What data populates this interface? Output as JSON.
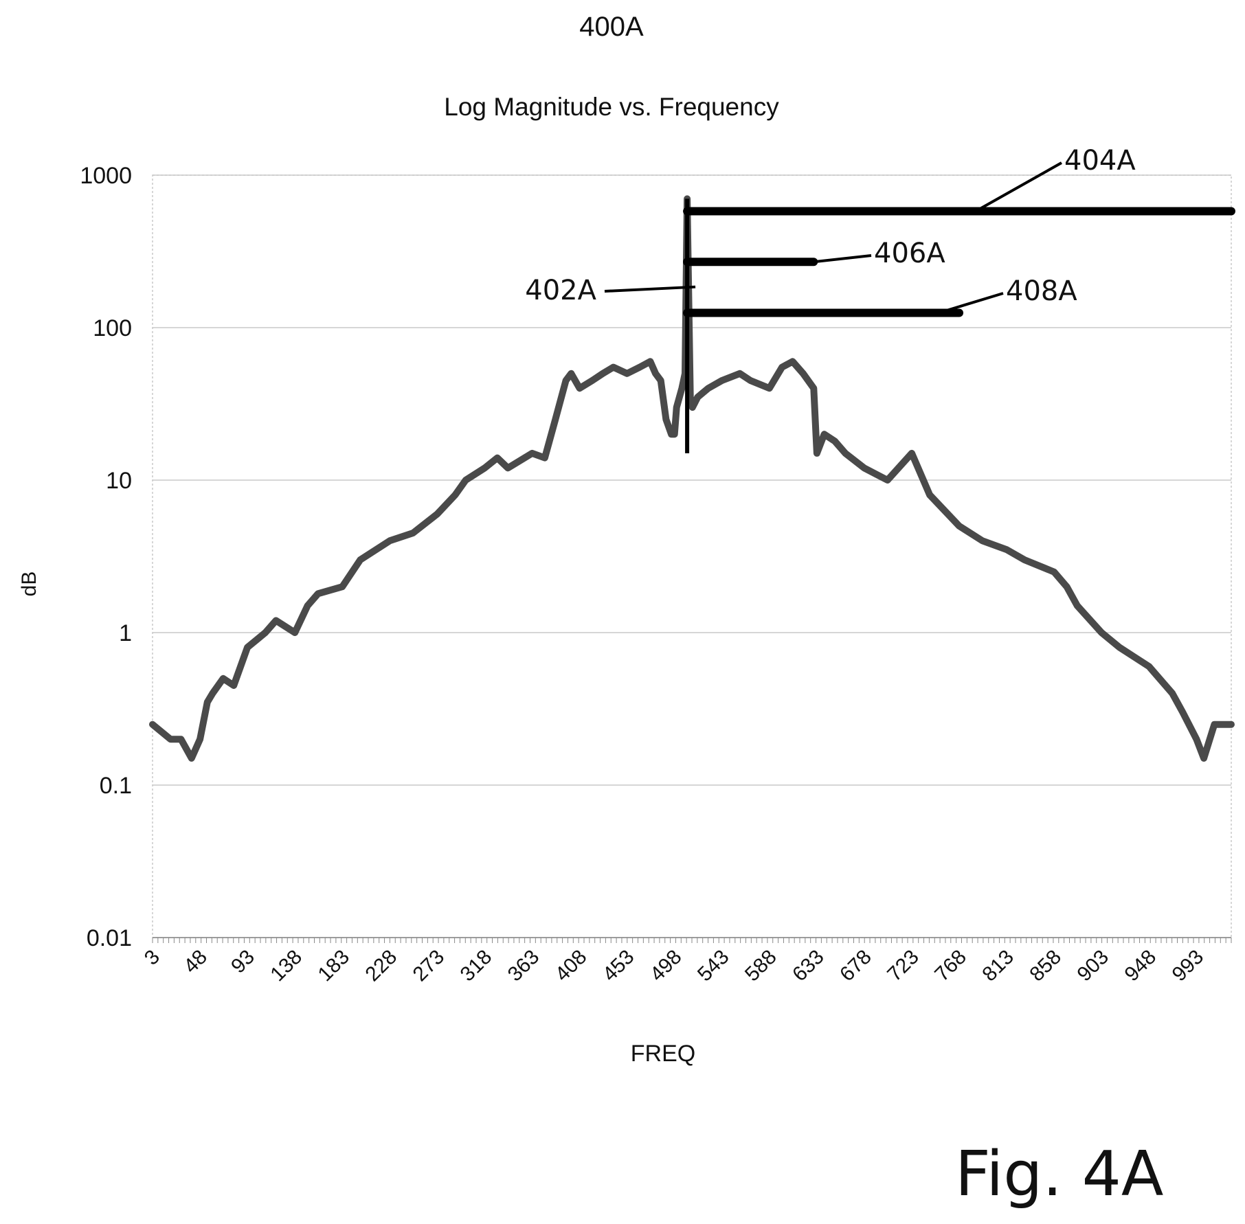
{
  "figure": {
    "label": "400A",
    "caption": "Fig. 4A"
  },
  "chart_data": {
    "type": "line",
    "title": "Log Magnitude vs. Frequency",
    "xlabel": "FREQ",
    "ylabel": "dB",
    "yscale": "log",
    "ylim": [
      0.01,
      1000
    ],
    "xlim": [
      3,
      1026
    ],
    "grid": "horizontal",
    "legend": "none",
    "ytick_labels": [
      "0.01",
      "0.1",
      "1",
      "10",
      "100",
      "1000"
    ],
    "xtick_labels": [
      "3",
      "48",
      "93",
      "138",
      "183",
      "228",
      "273",
      "318",
      "363",
      "408",
      "453",
      "498",
      "543",
      "588",
      "633",
      "678",
      "723",
      "768",
      "813",
      "858",
      "903",
      "948",
      "993"
    ],
    "colors": {
      "series": "#4a4a4a",
      "annotation": "#000000",
      "grid": "#c8c8c8"
    },
    "series": [
      {
        "x": [
          3,
          20,
          30,
          40,
          48,
          55,
          60,
          70,
          80,
          93,
          110,
          120,
          138,
          150,
          160,
          183,
          200,
          228,
          250,
          273,
          290,
          300,
          318,
          330,
          340,
          363,
          375,
          385,
          395,
          400,
          408,
          420,
          430,
          440,
          453,
          465,
          475,
          480,
          485,
          490,
          495,
          498,
          500,
          505,
          508,
          510,
          513,
          515,
          520,
          530,
          543,
          560,
          570,
          588,
          600,
          610,
          620,
          630,
          633,
          640,
          650,
          660,
          678,
          700,
          723,
          740,
          768,
          790,
          813,
          830,
          858,
          870,
          880,
          903,
          920,
          948,
          970,
          980,
          993,
          1000,
          1010,
          1026
        ],
        "y": [
          0.25,
          0.2,
          0.2,
          0.15,
          0.2,
          0.35,
          0.4,
          0.5,
          0.45,
          0.8,
          1.0,
          1.2,
          1.0,
          1.5,
          1.8,
          2.0,
          3.0,
          4.0,
          4.5,
          6.0,
          8.0,
          10.0,
          12.0,
          14.0,
          12.0,
          15.0,
          14.0,
          25.0,
          45.0,
          50.0,
          40.0,
          45.0,
          50.0,
          55.0,
          50.0,
          55.0,
          60.0,
          50.0,
          45.0,
          25.0,
          20.0,
          20.0,
          30.0,
          40.0,
          50.0,
          700.0,
          35.0,
          30.0,
          35.0,
          40.0,
          45.0,
          50.0,
          45.0,
          40.0,
          55.0,
          60.0,
          50.0,
          40.0,
          15.0,
          20.0,
          18.0,
          15.0,
          12.0,
          10.0,
          15.0,
          8.0,
          5.0,
          4.0,
          3.5,
          3.0,
          2.5,
          2.0,
          1.5,
          1.0,
          0.8,
          0.6,
          0.4,
          0.3,
          0.2,
          0.15,
          0.25,
          0.25
        ]
      }
    ],
    "annotations": [
      {
        "label": "402A",
        "target": "peak"
      },
      {
        "label": "404A",
        "y": 580,
        "x_start": 510,
        "x_end": 1026
      },
      {
        "label": "406A",
        "y": 270,
        "x_start": 510,
        "x_end": 630
      },
      {
        "label": "408A",
        "y": 125,
        "x_start": 510,
        "x_end": 768
      }
    ]
  }
}
